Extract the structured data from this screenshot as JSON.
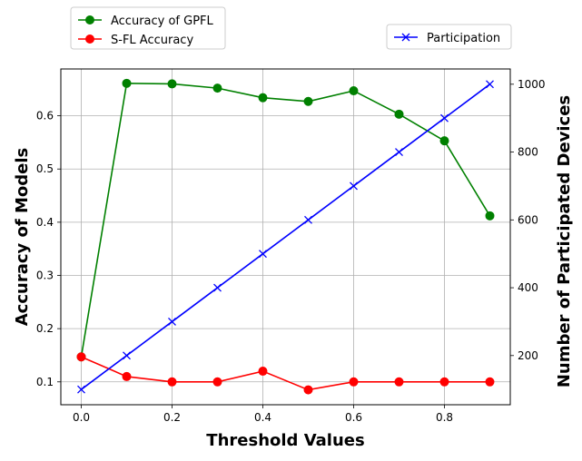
{
  "chart_data": {
    "type": "line",
    "title": "",
    "xlabel": "Threshold Values",
    "ylabel_left": "Accuracy of Models",
    "ylabel_right": "Number of Participated Devices",
    "x": [
      0.0,
      0.1,
      0.2,
      0.3,
      0.4,
      0.5,
      0.6,
      0.7,
      0.8,
      0.9
    ],
    "x_ticks": [
      "0.0",
      "0.2",
      "0.4",
      "0.6",
      "0.8"
    ],
    "x_tick_values": [
      0.0,
      0.2,
      0.4,
      0.6,
      0.8
    ],
    "xlim": [
      -0.045,
      0.945
    ],
    "ylim_left": [
      0.057,
      0.688
    ],
    "y_ticks_left": [
      "0.1",
      "0.2",
      "0.3",
      "0.4",
      "0.5",
      "0.6"
    ],
    "y_tick_values_left": [
      0.1,
      0.2,
      0.3,
      0.4,
      0.5,
      0.6
    ],
    "ylim_right": [
      55,
      1045
    ],
    "y_ticks_right": [
      "200",
      "400",
      "600",
      "800",
      "1000"
    ],
    "y_tick_values_right": [
      200,
      400,
      600,
      800,
      1000
    ],
    "grid": true,
    "series": [
      {
        "name": "Accuracy of GPFL",
        "axis": "left",
        "color": "#008000",
        "marker": "circle",
        "values": [
          0.147,
          0.661,
          0.66,
          0.652,
          0.634,
          0.627,
          0.647,
          0.603,
          0.553,
          0.412
        ]
      },
      {
        "name": "S-FL Accuracy",
        "axis": "left",
        "color": "#ff0000",
        "marker": "circle",
        "values": [
          0.147,
          0.11,
          0.1,
          0.1,
          0.12,
          0.085,
          0.1,
          0.1,
          0.1,
          0.1
        ]
      },
      {
        "name": "Participation",
        "axis": "right",
        "color": "#0000ff",
        "marker": "x",
        "values": [
          100,
          200,
          300,
          400,
          500,
          600,
          700,
          800,
          900,
          1000
        ]
      }
    ],
    "legends": {
      "left_legend": {
        "placement": "above-top-left",
        "items": [
          "Accuracy of GPFL",
          "S-FL Accuracy"
        ]
      },
      "right_legend": {
        "placement": "above-top-right",
        "items": [
          "Participation"
        ]
      }
    }
  }
}
